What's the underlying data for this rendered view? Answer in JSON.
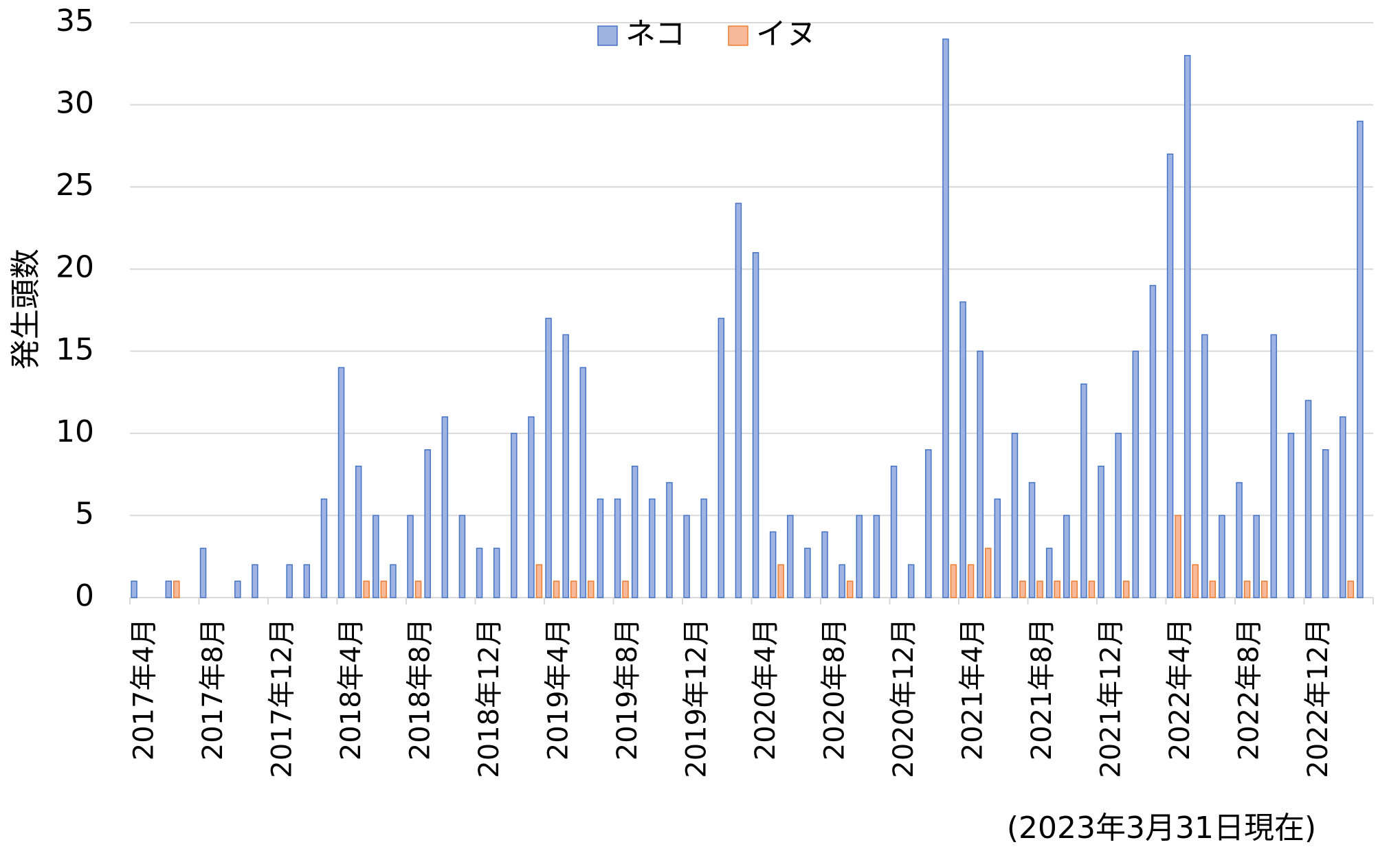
{
  "chart_data": {
    "type": "bar",
    "y_label": "発生頭数",
    "annotation": "(2023年3月31日現在)",
    "categories": [
      "2017年4月",
      null,
      null,
      null,
      "2017年8月",
      null,
      null,
      null,
      "2017年12月",
      null,
      null,
      null,
      "2018年4月",
      null,
      null,
      null,
      "2018年8月",
      null,
      null,
      null,
      "2018年12月",
      null,
      null,
      null,
      "2019年4月",
      null,
      null,
      null,
      "2019年8月",
      null,
      null,
      null,
      "2019年12月",
      null,
      null,
      null,
      "2020年4月",
      null,
      null,
      null,
      "2020年8月",
      null,
      null,
      null,
      "2020年12月",
      null,
      null,
      null,
      "2021年4月",
      null,
      null,
      null,
      "2021年8月",
      null,
      null,
      null,
      "2021年12月",
      null,
      null,
      null,
      "2022年4月",
      null,
      null,
      null,
      "2022年8月",
      null,
      null,
      null,
      "2022年12月",
      null,
      null,
      null
    ],
    "series": [
      {
        "name": "ネコ",
        "color": "#9fb3e3",
        "edge": "#4472c4",
        "values": [
          1,
          0,
          1,
          0,
          3,
          0,
          1,
          2,
          0,
          2,
          2,
          6,
          14,
          8,
          5,
          2,
          5,
          9,
          11,
          5,
          3,
          3,
          10,
          11,
          17,
          16,
          14,
          6,
          6,
          8,
          6,
          7,
          5,
          6,
          17,
          24,
          21,
          4,
          5,
          3,
          4,
          2,
          5,
          5,
          8,
          2,
          9,
          34,
          18,
          15,
          6,
          10,
          7,
          3,
          5,
          13,
          8,
          10,
          15,
          19,
          27,
          33,
          16,
          5,
          7,
          5,
          16,
          10,
          12,
          9,
          11,
          29
        ]
      },
      {
        "name": "イヌ",
        "color": "#f8b89a",
        "edge": "#ed7d31",
        "values": [
          0,
          0,
          1,
          0,
          0,
          0,
          0,
          0,
          0,
          0,
          0,
          0,
          0,
          1,
          1,
          0,
          1,
          0,
          0,
          0,
          0,
          0,
          0,
          2,
          1,
          1,
          1,
          0,
          1,
          0,
          0,
          0,
          0,
          0,
          0,
          0,
          0,
          2,
          0,
          0,
          0,
          1,
          0,
          0,
          0,
          0,
          0,
          2,
          2,
          3,
          0,
          1,
          1,
          1,
          1,
          1,
          0,
          1,
          0,
          0,
          5,
          2,
          1,
          0,
          1,
          1,
          0,
          0,
          0,
          0,
          1,
          0
        ]
      }
    ],
    "ylim": [
      0,
      35
    ],
    "yticks": [
      0,
      5,
      10,
      15,
      20,
      25,
      30,
      35
    ],
    "grid": true,
    "legend": "top"
  }
}
